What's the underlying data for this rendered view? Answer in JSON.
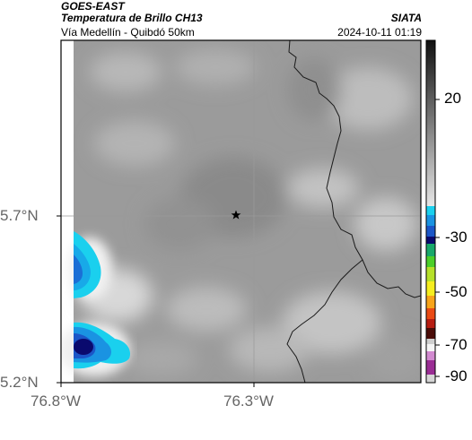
{
  "header": {
    "satellite": "GOES-EAST",
    "product": "Temperatura de Brillo CH13",
    "region": "Vía Medellín - Quibdó 50km",
    "source": "SIATA",
    "datetime": "2024-10-11 01:19"
  },
  "axes": {
    "lat_ticks": [
      "5.7°N",
      "5.2°N"
    ],
    "lon_ticks": [
      "76.8°W",
      "76.3°W"
    ]
  },
  "colorbar": {
    "ticks": [
      "20",
      "-30",
      "-50",
      "-70",
      "-90"
    ]
  },
  "colors": {
    "frame": "#000000",
    "grid": "#9a9a9a",
    "cloud_cold_deep": "#0a0a6e",
    "cloud_cyan": "#1ad0ee",
    "background_gray": "#9b9b9b"
  },
  "marker": {
    "icon": "star-icon"
  }
}
